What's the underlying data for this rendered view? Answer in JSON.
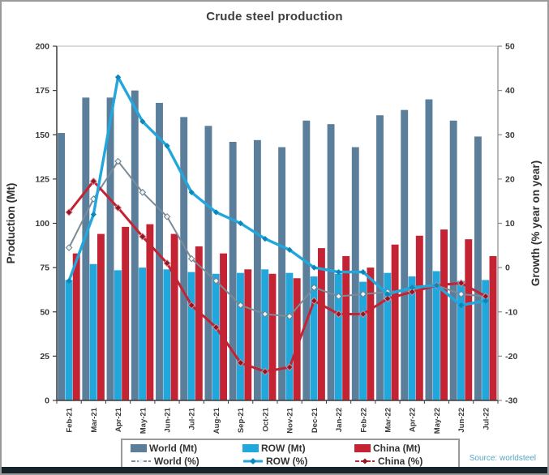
{
  "title": "Crude steel production",
  "source": "Source: worldsteel",
  "axes": {
    "left_label": "Production (Mt)",
    "right_label": "Growth (% year on year)",
    "left_range": [
      0,
      200
    ],
    "right_range": [
      -30,
      50
    ],
    "left_ticks": [
      0,
      25,
      50,
      75,
      100,
      125,
      150,
      175,
      200
    ],
    "right_ticks": [
      -30,
      -20,
      -10,
      0,
      10,
      20,
      30,
      40,
      50
    ]
  },
  "chart_data": {
    "type": "bar+line combo (bars on left Mt axis, lines on right % axis)",
    "title": "Crude steel production",
    "xlabel": "",
    "ylabel_left": "Production (Mt)",
    "ylabel_right": "Growth (% year on year)",
    "ylim_left": [
      0,
      200
    ],
    "ylim_right": [
      -30,
      50
    ],
    "grid": "off",
    "legend_position": "bottom box, 2 rows x 3 columns",
    "categories": [
      "Feb-21",
      "Mar-21",
      "Apr-21",
      "May-21",
      "Jun-21",
      "Jul-21",
      "Aug-21",
      "Sep-21",
      "Oct-21",
      "Nov-21",
      "Dec-21",
      "Jan-22",
      "Feb-22",
      "Mar-22",
      "Apr-22",
      "May-22",
      "Jun-22",
      "Jul-22"
    ],
    "bar_series": [
      {
        "name": "World (Mt)",
        "axis": "left",
        "color": "#5b7e9b",
        "values": [
          151,
          171,
          171,
          175,
          168,
          160,
          155,
          146,
          147,
          143,
          158,
          156,
          143,
          161,
          164,
          170,
          158,
          149
        ]
      },
      {
        "name": "ROW (Mt)",
        "axis": "left",
        "color": "#22a7dd",
        "values": [
          68,
          77,
          73.5,
          75,
          74,
          72.5,
          71.5,
          72,
          74,
          72,
          70,
          71.5,
          67,
          72,
          70,
          73,
          67.5,
          68
        ]
      },
      {
        "name": "China (Mt)",
        "axis": "left",
        "color": "#c42334",
        "values": [
          83,
          94,
          98,
          99.5,
          94,
          87,
          83,
          74,
          71.5,
          69,
          86,
          81.5,
          75,
          88,
          93,
          96.5,
          91,
          81.5
        ]
      }
    ],
    "line_series": [
      {
        "name": "World (%)",
        "axis": "right",
        "color": "#7b8c98",
        "marker_fill": "#eef2f4",
        "marker_stroke": "#6b7e8a",
        "values": [
          4.5,
          15.5,
          24,
          17,
          11.5,
          2,
          -3,
          -8.5,
          -10.5,
          -11,
          -4.5,
          -6.5,
          -6,
          -5.5,
          -5,
          -4,
          -6,
          -6.5
        ]
      },
      {
        "name": "ROW (%)",
        "axis": "right",
        "color": "#22a7dd",
        "marker_fill": "#0d86ba",
        "marker_stroke": "none",
        "values": [
          -3,
          12,
          43,
          33,
          27.5,
          17,
          12.5,
          10,
          6.5,
          4,
          0,
          -1,
          -1,
          -6,
          -4.5,
          -4,
          -8.5,
          -7.5
        ]
      },
      {
        "name": "China (%)",
        "axis": "right",
        "color": "#c42334",
        "marker_fill": "#8f1622",
        "marker_stroke": "#d98b93",
        "values": [
          12.5,
          19.5,
          13.5,
          7,
          1,
          -8.5,
          -13.5,
          -21.5,
          -23.5,
          -22.5,
          -7.5,
          -10.5,
          -10.5,
          -7,
          -5.5,
          -4,
          -3.5,
          -6.5
        ]
      }
    ]
  }
}
